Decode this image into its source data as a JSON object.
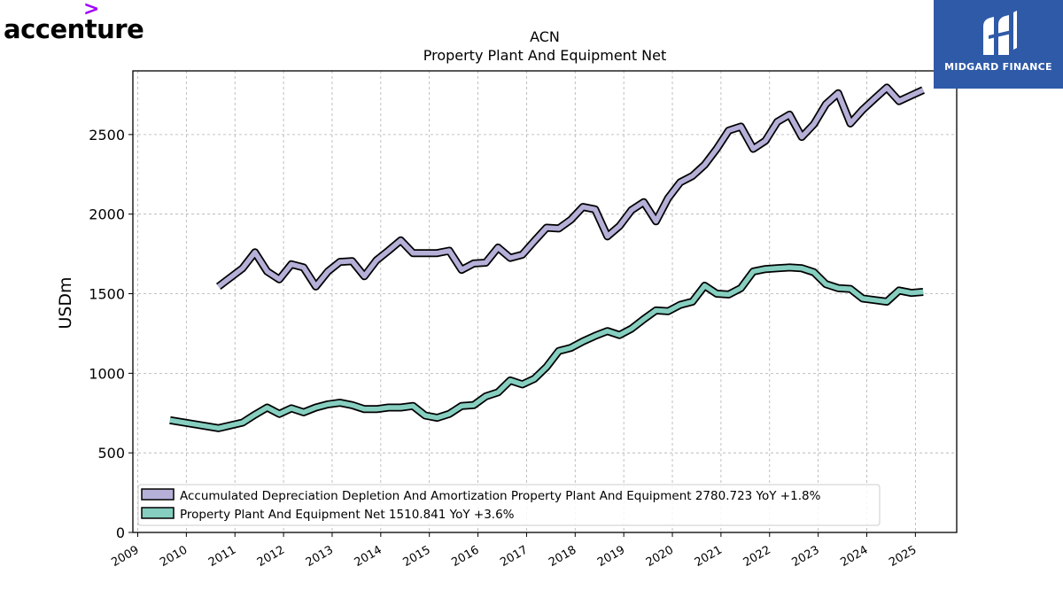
{
  "logos": {
    "left": {
      "text": "accenture",
      "chevron": ">"
    },
    "right": {
      "text": "MIDGARD FINANCE"
    }
  },
  "chart_data": {
    "type": "line",
    "title": "ACN",
    "subtitle": "Property Plant And Equipment Net",
    "ylabel": "USDm",
    "xlabel": "",
    "xlim": [
      2008.9,
      2025.85
    ],
    "ylim": [
      0,
      2900
    ],
    "x_ticks": [
      "2009",
      "2010",
      "2011",
      "2012",
      "2013",
      "2014",
      "2015",
      "2016",
      "2017",
      "2018",
      "2019",
      "2020",
      "2021",
      "2022",
      "2023",
      "2024",
      "2025"
    ],
    "y_ticks": [
      0,
      500,
      1000,
      1500,
      2000,
      2500
    ],
    "grid": true,
    "legend_position": "lower-left",
    "series": [
      {
        "name": "Accumulated Depreciation Depletion And Amortization Property Plant And Equipment",
        "legend_label": "Accumulated Depreciation Depletion And Amortization Property Plant And Equipment  2780.723 YoY +1.8%",
        "color": "#b4b0d8",
        "points": [
          [
            "2010-08-31",
            1545
          ],
          [
            "2011-02-28",
            1660
          ],
          [
            "2011-05-31",
            1760
          ],
          [
            "2011-08-31",
            1640
          ],
          [
            "2011-11-30",
            1590
          ],
          [
            "2012-02-29",
            1685
          ],
          [
            "2012-05-31",
            1665
          ],
          [
            "2012-08-31",
            1545
          ],
          [
            "2012-11-30",
            1640
          ],
          [
            "2013-02-28",
            1700
          ],
          [
            "2013-05-31",
            1705
          ],
          [
            "2013-08-31",
            1610
          ],
          [
            "2013-11-30",
            1710
          ],
          [
            "2014-02-28",
            1770
          ],
          [
            "2014-05-31",
            1835
          ],
          [
            "2014-08-31",
            1755
          ],
          [
            "2014-11-30",
            1755
          ],
          [
            "2015-02-28",
            1755
          ],
          [
            "2015-05-31",
            1770
          ],
          [
            "2015-08-31",
            1650
          ],
          [
            "2015-11-30",
            1690
          ],
          [
            "2016-02-29",
            1695
          ],
          [
            "2016-05-31",
            1790
          ],
          [
            "2016-08-31",
            1725
          ],
          [
            "2016-11-30",
            1745
          ],
          [
            "2017-02-28",
            1830
          ],
          [
            "2017-05-31",
            1915
          ],
          [
            "2017-08-31",
            1910
          ],
          [
            "2017-11-30",
            1965
          ],
          [
            "2018-02-28",
            2045
          ],
          [
            "2018-05-31",
            2030
          ],
          [
            "2018-08-31",
            1860
          ],
          [
            "2018-11-30",
            1925
          ],
          [
            "2019-02-28",
            2025
          ],
          [
            "2019-05-31",
            2075
          ],
          [
            "2019-08-31",
            1955
          ],
          [
            "2019-11-30",
            2100
          ],
          [
            "2020-02-29",
            2200
          ],
          [
            "2020-05-31",
            2240
          ],
          [
            "2020-08-31",
            2310
          ],
          [
            "2020-11-30",
            2410
          ],
          [
            "2021-02-28",
            2525
          ],
          [
            "2021-05-31",
            2550
          ],
          [
            "2021-08-31",
            2410
          ],
          [
            "2021-11-30",
            2460
          ],
          [
            "2022-02-28",
            2580
          ],
          [
            "2022-05-31",
            2625
          ],
          [
            "2022-08-31",
            2485
          ],
          [
            "2022-11-30",
            2565
          ],
          [
            "2023-02-28",
            2690
          ],
          [
            "2023-05-31",
            2760
          ],
          [
            "2023-08-31",
            2570
          ],
          [
            "2023-11-30",
            2655
          ],
          [
            "2024-02-29",
            2725
          ],
          [
            "2024-05-31",
            2795
          ],
          [
            "2024-08-31",
            2710
          ],
          [
            "2024-11-30",
            2745
          ],
          [
            "2025-02-28",
            2780
          ]
        ]
      },
      {
        "name": "Property Plant And Equipment Net",
        "legend_label": "Property Plant And Equipment Net  1510.841 YoY +3.6%",
        "color": "#86cfc0",
        "points": [
          [
            "2009-08-31",
            705
          ],
          [
            "2010-08-31",
            655
          ],
          [
            "2011-02-28",
            690
          ],
          [
            "2011-05-31",
            740
          ],
          [
            "2011-08-31",
            785
          ],
          [
            "2011-11-30",
            745
          ],
          [
            "2012-02-29",
            780
          ],
          [
            "2012-05-31",
            755
          ],
          [
            "2012-08-31",
            785
          ],
          [
            "2012-11-30",
            805
          ],
          [
            "2013-02-28",
            815
          ],
          [
            "2013-05-31",
            800
          ],
          [
            "2013-08-31",
            775
          ],
          [
            "2013-11-30",
            775
          ],
          [
            "2014-02-28",
            785
          ],
          [
            "2014-05-31",
            785
          ],
          [
            "2014-08-31",
            795
          ],
          [
            "2014-11-30",
            735
          ],
          [
            "2015-02-28",
            720
          ],
          [
            "2015-05-31",
            745
          ],
          [
            "2015-08-31",
            795
          ],
          [
            "2015-11-30",
            800
          ],
          [
            "2016-02-29",
            855
          ],
          [
            "2016-05-31",
            880
          ],
          [
            "2016-08-31",
            955
          ],
          [
            "2016-11-30",
            930
          ],
          [
            "2017-02-28",
            965
          ],
          [
            "2017-05-31",
            1040
          ],
          [
            "2017-08-31",
            1140
          ],
          [
            "2017-11-30",
            1160
          ],
          [
            "2018-02-28",
            1200
          ],
          [
            "2018-05-31",
            1235
          ],
          [
            "2018-08-31",
            1265
          ],
          [
            "2018-11-30",
            1240
          ],
          [
            "2019-02-28",
            1280
          ],
          [
            "2019-05-31",
            1340
          ],
          [
            "2019-08-31",
            1395
          ],
          [
            "2019-11-30",
            1390
          ],
          [
            "2020-02-29",
            1430
          ],
          [
            "2020-05-31",
            1450
          ],
          [
            "2020-08-31",
            1550
          ],
          [
            "2020-11-30",
            1500
          ],
          [
            "2021-02-28",
            1495
          ],
          [
            "2021-05-31",
            1535
          ],
          [
            "2021-08-31",
            1640
          ],
          [
            "2021-11-30",
            1655
          ],
          [
            "2022-02-28",
            1660
          ],
          [
            "2022-05-31",
            1665
          ],
          [
            "2022-08-31",
            1660
          ],
          [
            "2022-11-30",
            1635
          ],
          [
            "2023-02-28",
            1560
          ],
          [
            "2023-05-31",
            1535
          ],
          [
            "2023-08-31",
            1530
          ],
          [
            "2023-11-30",
            1470
          ],
          [
            "2024-02-29",
            1460
          ],
          [
            "2024-05-31",
            1450
          ],
          [
            "2024-08-31",
            1520
          ],
          [
            "2024-11-30",
            1505
          ],
          [
            "2025-02-28",
            1511
          ]
        ]
      }
    ]
  }
}
